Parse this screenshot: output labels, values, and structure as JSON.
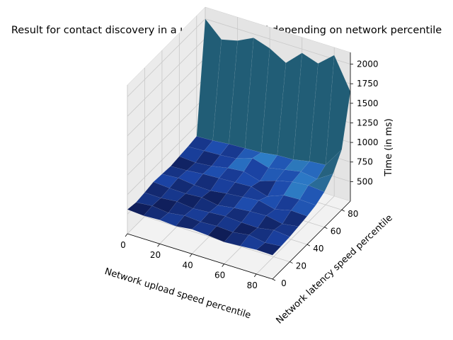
{
  "chart_data": {
    "type": "surface3d",
    "title": "Result for contact discovery in a user base of 10M depending on network percentile",
    "xlabel": "Network upload speed percentile",
    "ylabel": "Network latency speed percentile",
    "zlabel": "Time (in ms)",
    "x_ticks": [
      0,
      20,
      40,
      60,
      80
    ],
    "y_ticks": [
      0,
      20,
      40,
      60,
      80
    ],
    "z_ticks": [
      500,
      750,
      1000,
      1250,
      1500,
      1750,
      2000
    ],
    "xlim": [
      0,
      90
    ],
    "ylim": [
      0,
      90
    ],
    "zlim": [
      250,
      2150
    ],
    "grid": true,
    "colormap": "blue-to-teal",
    "x": [
      0,
      10,
      20,
      30,
      40,
      50,
      60,
      70,
      80,
      90
    ],
    "y": [
      0,
      10,
      20,
      30,
      40,
      50,
      60,
      70,
      80,
      90
    ],
    "z": [
      [
        560,
        540,
        555,
        580,
        570,
        560,
        575,
        590,
        610,
        2000
      ],
      [
        545,
        560,
        550,
        565,
        585,
        570,
        560,
        600,
        620,
        1800
      ],
      [
        555,
        535,
        570,
        560,
        560,
        590,
        580,
        610,
        640,
        1850
      ],
      [
        540,
        565,
        545,
        575,
        550,
        600,
        620,
        630,
        650,
        1950
      ],
      [
        565,
        550,
        560,
        540,
        580,
        610,
        640,
        700,
        660,
        1880
      ],
      [
        550,
        560,
        575,
        570,
        600,
        620,
        580,
        640,
        690,
        1760
      ],
      [
        530,
        545,
        560,
        590,
        620,
        560,
        650,
        680,
        700,
        1950
      ],
      [
        545,
        575,
        555,
        600,
        570,
        640,
        700,
        720,
        740,
        1880
      ],
      [
        560,
        540,
        590,
        560,
        620,
        650,
        720,
        690,
        760,
        2050
      ],
      [
        555,
        560,
        570,
        590,
        610,
        640,
        700,
        820,
        1020,
        1650
      ]
    ]
  }
}
